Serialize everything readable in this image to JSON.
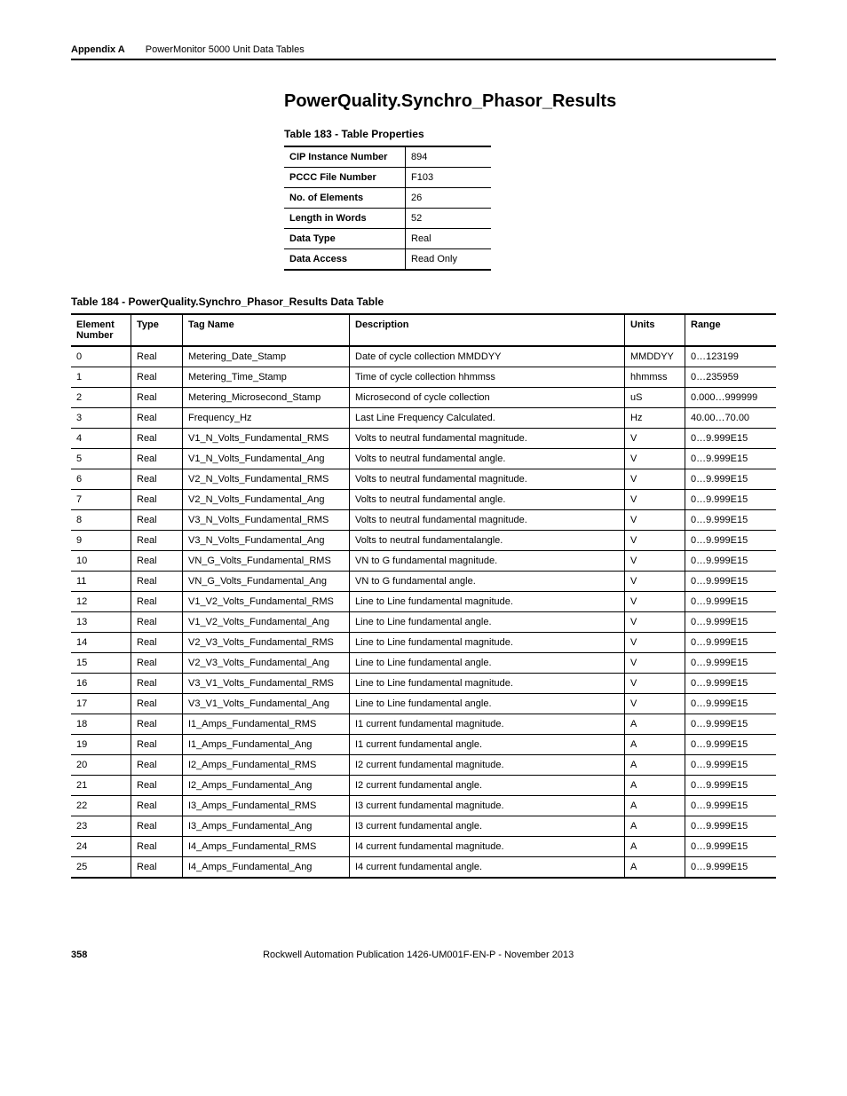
{
  "header": {
    "appendix": "Appendix A",
    "subtitle": "PowerMonitor 5000 Unit Data Tables"
  },
  "section_title": "PowerQuality.Synchro_Phasor_Results",
  "props_caption": "Table 183 - Table Properties",
  "props_rows": [
    {
      "label": "CIP Instance Number",
      "value": "894"
    },
    {
      "label": "PCCC File Number",
      "value": "F103"
    },
    {
      "label": "No. of Elements",
      "value": "26"
    },
    {
      "label": "Length in Words",
      "value": "52"
    },
    {
      "label": "Data Type",
      "value": "Real"
    },
    {
      "label": "Data Access",
      "value": "Read Only"
    }
  ],
  "data_caption": "Table 184 - PowerQuality.Synchro_Phasor_Results Data Table",
  "data_headers": {
    "elnum": "Element Number",
    "type": "Type",
    "tag": "Tag Name",
    "desc": "Description",
    "units": "Units",
    "range": "Range"
  },
  "data_rows": [
    {
      "n": "0",
      "type": "Real",
      "tag": "Metering_Date_Stamp",
      "desc": "Date of cycle collection MMDDYY",
      "units": "MMDDYY",
      "range": "0…123199"
    },
    {
      "n": "1",
      "type": "Real",
      "tag": "Metering_Time_Stamp",
      "desc": "Time of cycle collection hhmmss",
      "units": "hhmmss",
      "range": "0…235959"
    },
    {
      "n": "2",
      "type": "Real",
      "tag": "Metering_Microsecond_Stamp",
      "desc": "Microsecond of cycle collection",
      "units": "uS",
      "range": "0.000…999999"
    },
    {
      "n": "3",
      "type": "Real",
      "tag": "Frequency_Hz",
      "desc": "Last Line Frequency Calculated.",
      "units": "Hz",
      "range": "40.00…70.00"
    },
    {
      "n": "4",
      "type": "Real",
      "tag": "V1_N_Volts_Fundamental_RMS",
      "desc": "Volts to neutral fundamental magnitude.",
      "units": "V",
      "range": "0…9.999E15"
    },
    {
      "n": "5",
      "type": "Real",
      "tag": "V1_N_Volts_Fundamental_Ang",
      "desc": "Volts to neutral fundamental angle.",
      "units": "V",
      "range": "0…9.999E15"
    },
    {
      "n": "6",
      "type": "Real",
      "tag": "V2_N_Volts_Fundamental_RMS",
      "desc": "Volts to neutral fundamental magnitude.",
      "units": "V",
      "range": "0…9.999E15"
    },
    {
      "n": "7",
      "type": "Real",
      "tag": "V2_N_Volts_Fundamental_Ang",
      "desc": "Volts to neutral fundamental angle.",
      "units": "V",
      "range": "0…9.999E15"
    },
    {
      "n": "8",
      "type": "Real",
      "tag": "V3_N_Volts_Fundamental_RMS",
      "desc": "Volts to neutral fundamental magnitude.",
      "units": "V",
      "range": "0…9.999E15"
    },
    {
      "n": "9",
      "type": "Real",
      "tag": "V3_N_Volts_Fundamental_Ang",
      "desc": "Volts to neutral fundamentalangle.",
      "units": "V",
      "range": "0…9.999E15"
    },
    {
      "n": "10",
      "type": "Real",
      "tag": "VN_G_Volts_Fundamental_RMS",
      "desc": "VN to G fundamental magnitude.",
      "units": "V",
      "range": "0…9.999E15"
    },
    {
      "n": "11",
      "type": "Real",
      "tag": "VN_G_Volts_Fundamental_Ang",
      "desc": "VN to G fundamental angle.",
      "units": "V",
      "range": "0…9.999E15"
    },
    {
      "n": "12",
      "type": "Real",
      "tag": "V1_V2_Volts_Fundamental_RMS",
      "desc": "Line to Line fundamental magnitude.",
      "units": "V",
      "range": "0…9.999E15"
    },
    {
      "n": "13",
      "type": "Real",
      "tag": "V1_V2_Volts_Fundamental_Ang",
      "desc": "Line to Line fundamental angle.",
      "units": "V",
      "range": "0…9.999E15"
    },
    {
      "n": "14",
      "type": "Real",
      "tag": "V2_V3_Volts_Fundamental_RMS",
      "desc": "Line to Line fundamental magnitude.",
      "units": "V",
      "range": "0…9.999E15"
    },
    {
      "n": "15",
      "type": "Real",
      "tag": "V2_V3_Volts_Fundamental_Ang",
      "desc": "Line to Line fundamental angle.",
      "units": "V",
      "range": "0…9.999E15"
    },
    {
      "n": "16",
      "type": "Real",
      "tag": "V3_V1_Volts_Fundamental_RMS",
      "desc": "Line to Line fundamental magnitude.",
      "units": "V",
      "range": "0…9.999E15"
    },
    {
      "n": "17",
      "type": "Real",
      "tag": "V3_V1_Volts_Fundamental_Ang",
      "desc": "Line to Line fundamental angle.",
      "units": "V",
      "range": "0…9.999E15"
    },
    {
      "n": "18",
      "type": "Real",
      "tag": "I1_Amps_Fundamental_RMS",
      "desc": "I1 current fundamental magnitude.",
      "units": "A",
      "range": "0…9.999E15"
    },
    {
      "n": "19",
      "type": "Real",
      "tag": "I1_Amps_Fundamental_Ang",
      "desc": "I1 current fundamental angle.",
      "units": "A",
      "range": "0…9.999E15"
    },
    {
      "n": "20",
      "type": "Real",
      "tag": "I2_Amps_Fundamental_RMS",
      "desc": "I2 current fundamental magnitude.",
      "units": "A",
      "range": "0…9.999E15"
    },
    {
      "n": "21",
      "type": "Real",
      "tag": "I2_Amps_Fundamental_Ang",
      "desc": "I2 current fundamental angle.",
      "units": "A",
      "range": "0…9.999E15"
    },
    {
      "n": "22",
      "type": "Real",
      "tag": "I3_Amps_Fundamental_RMS",
      "desc": "I3 current fundamental magnitude.",
      "units": "A",
      "range": "0…9.999E15"
    },
    {
      "n": "23",
      "type": "Real",
      "tag": "I3_Amps_Fundamental_Ang",
      "desc": "I3 current fundamental angle.",
      "units": "A",
      "range": "0…9.999E15"
    },
    {
      "n": "24",
      "type": "Real",
      "tag": "I4_Amps_Fundamental_RMS",
      "desc": "I4 current fundamental magnitude.",
      "units": "A",
      "range": "0…9.999E15"
    },
    {
      "n": "25",
      "type": "Real",
      "tag": "I4_Amps_Fundamental_Ang",
      "desc": "I4 current fundamental angle.",
      "units": "A",
      "range": "0…9.999E15"
    }
  ],
  "footer": {
    "page": "358",
    "pub": "Rockwell Automation Publication 1426-UM001F-EN-P - November 2013"
  }
}
